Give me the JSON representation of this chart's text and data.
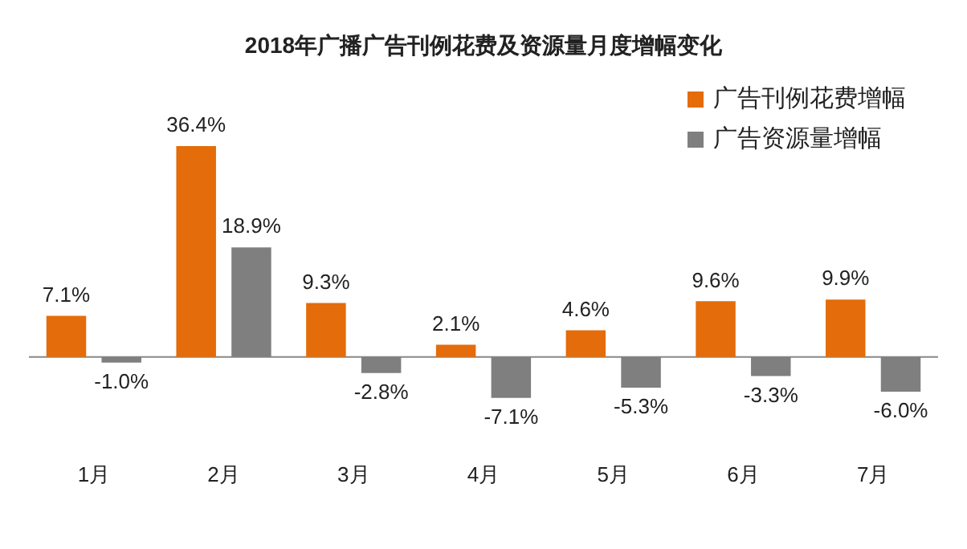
{
  "chart_data": {
    "type": "bar",
    "title": "2018年广播广告刊例花费及资源量月度增幅变化",
    "categories": [
      "1月",
      "2月",
      "3月",
      "4月",
      "5月",
      "6月",
      "7月"
    ],
    "series": [
      {
        "name": "广告刊例花费增幅",
        "color": "#e46c0a",
        "values": [
          7.1,
          36.4,
          9.3,
          2.1,
          4.6,
          9.6,
          9.9
        ],
        "value_labels": [
          "7.1%",
          "36.4%",
          "9.3%",
          "2.1%",
          "4.6%",
          "9.6%",
          "9.9%"
        ]
      },
      {
        "name": "广告资源量增幅",
        "color": "#7f7f7f",
        "values": [
          -1.0,
          18.9,
          -2.8,
          -7.1,
          -5.3,
          -3.3,
          -6.0
        ],
        "value_labels": [
          "-1.0%",
          "18.9%",
          "-2.8%",
          "-7.1%",
          "-5.3%",
          "-3.3%",
          "-6.0%"
        ]
      }
    ],
    "legend": "top right",
    "grid": false
  }
}
